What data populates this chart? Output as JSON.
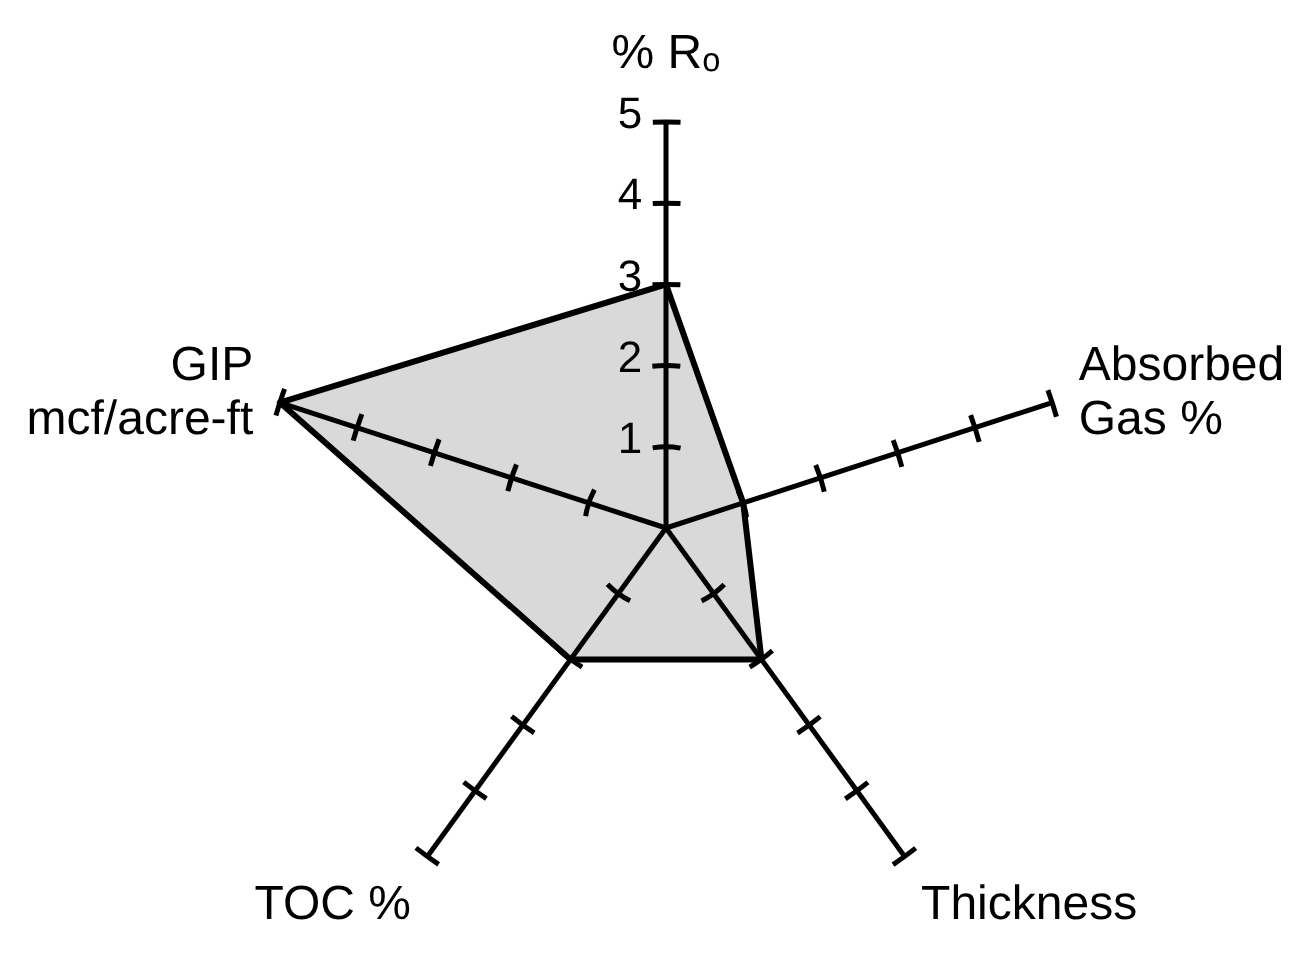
{
  "chart_data": {
    "type": "radar",
    "categories": [
      "% Rₒ",
      "Absorbed Gas %",
      "Thickness",
      "TOC %",
      "GIP mcf/acre-ft"
    ],
    "series": [
      {
        "color": "#d9d9d9",
        "values": [
          3,
          1,
          2,
          2,
          5
        ]
      }
    ],
    "ylim": [
      0,
      5
    ],
    "yticks": [
      1,
      2,
      3,
      4,
      5
    ]
  }
}
